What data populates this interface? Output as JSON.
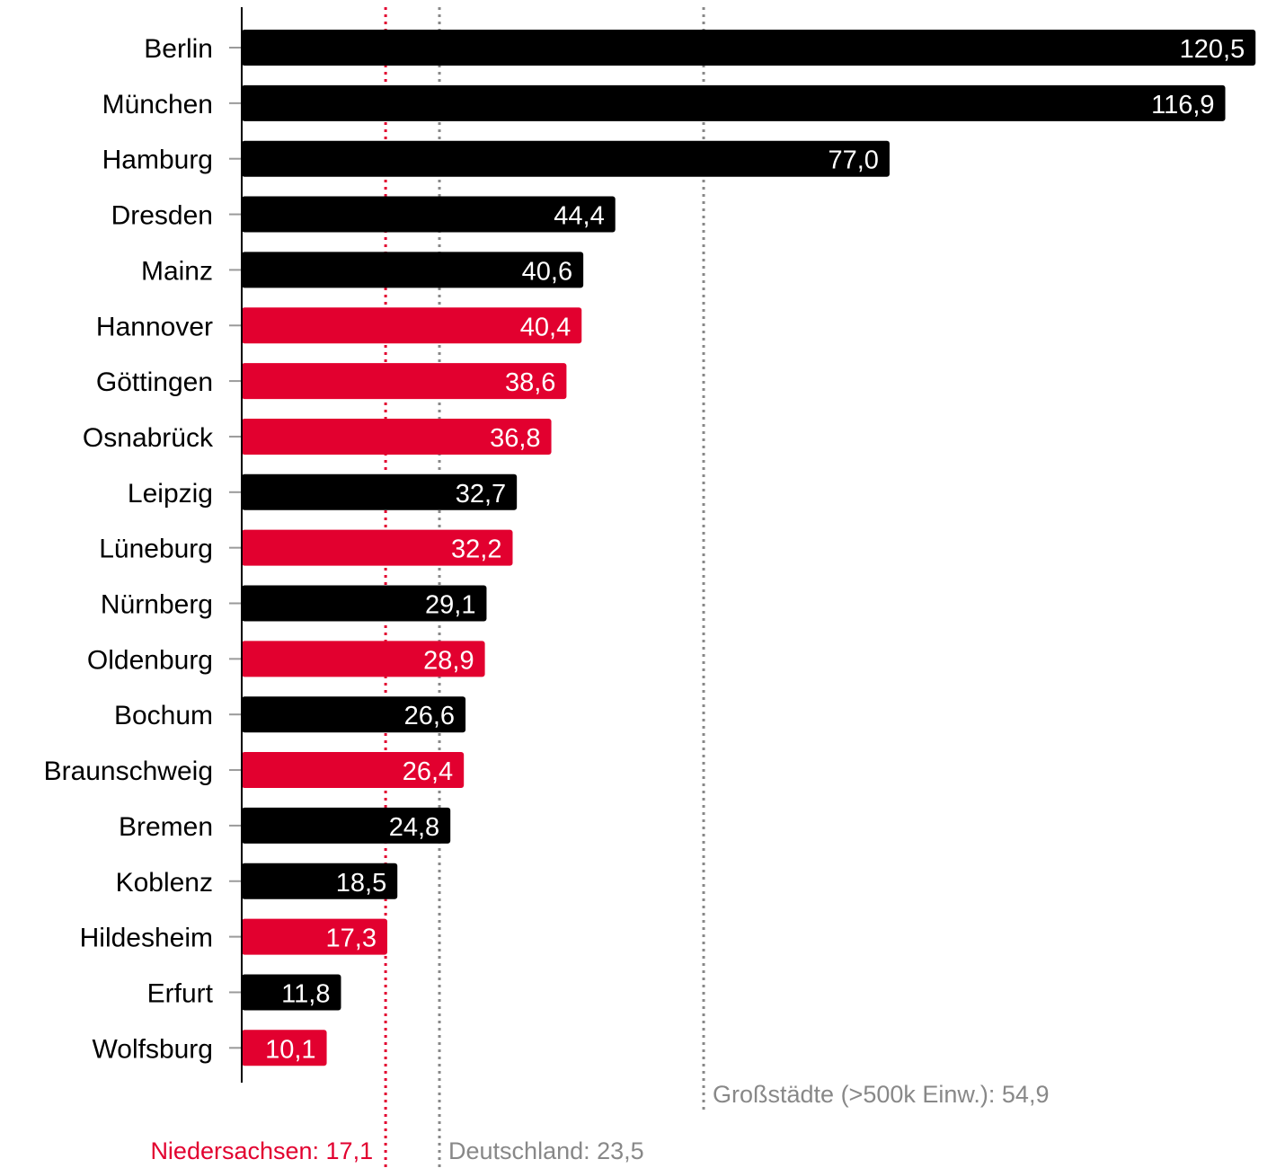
{
  "chart_data": {
    "type": "bar",
    "orientation": "horizontal",
    "categories": [
      "Berlin",
      "München",
      "Hamburg",
      "Dresden",
      "Mainz",
      "Hannover",
      "Göttingen",
      "Osnabrück",
      "Leipzig",
      "Lüneburg",
      "Nürnberg",
      "Oldenburg",
      "Bochum",
      "Braunschweig",
      "Bremen",
      "Koblenz",
      "Hildesheim",
      "Erfurt",
      "Wolfsburg"
    ],
    "values": [
      120.5,
      116.9,
      77.0,
      44.4,
      40.6,
      40.4,
      38.6,
      36.8,
      32.7,
      32.2,
      29.1,
      28.9,
      26.6,
      26.4,
      24.8,
      18.5,
      17.3,
      11.8,
      10.1
    ],
    "value_labels": [
      "120,5",
      "116,9",
      "77,0",
      "44,4",
      "40,6",
      "40,4",
      "38,6",
      "36,8",
      "32,7",
      "32,2",
      "29,1",
      "28,9",
      "26,6",
      "26,4",
      "24,8",
      "18,5",
      "17,3",
      "11,8",
      "10,1"
    ],
    "highlight": [
      false,
      false,
      false,
      false,
      false,
      true,
      true,
      true,
      false,
      true,
      false,
      true,
      false,
      true,
      false,
      false,
      true,
      false,
      true
    ],
    "xlim": [
      0,
      124
    ],
    "colors": {
      "default": "#000000",
      "highlight": "#e2002f",
      "reference_gray": "#888888"
    },
    "reference_lines": [
      {
        "label": "Niedersachsen: 17,1",
        "value": 17.1,
        "color": "#e2002f"
      },
      {
        "label": "Deutschland: 23,5",
        "value": 23.5,
        "color": "#888888"
      },
      {
        "label": "Großstädte (>500k Einw.): 54,9",
        "value": 54.9,
        "color": "#888888"
      }
    ],
    "grid": false,
    "legend": "none"
  }
}
